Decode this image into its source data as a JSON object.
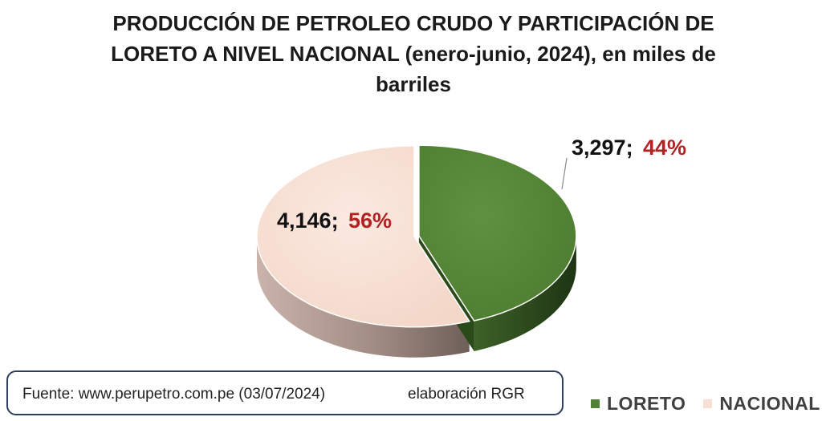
{
  "title": {
    "line1": "PRODUCCIÓN DE PETROLEO CRUDO Y PARTICIPACIÓN DE",
    "line2": "LORETO A NIVEL NACIONAL (enero-junio, 2024), en miles de",
    "line3": "barriles"
  },
  "chart_data": {
    "type": "pie",
    "title": "PRODUCCIÓN DE PETROLEO CRUDO Y PARTICIPACIÓN DE LORETO A NIVEL NACIONAL (enero-junio, 2024), en miles de barriles",
    "slices": [
      {
        "name": "LORETO",
        "value": 3297,
        "value_label": "3,297;",
        "percent_label": "44%",
        "color": "#538135",
        "exploded": true
      },
      {
        "name": "NACIONAL",
        "value": 4146,
        "value_label": "4,146;",
        "percent_label": "56%",
        "color": "#f8dfd3",
        "exploded": false
      }
    ],
    "style": "3d-pie",
    "legend_position": "bottom-right"
  },
  "legend": {
    "items": [
      {
        "label": "LORETO",
        "color": "#538135"
      },
      {
        "label": "NACIONAL",
        "color": "#f8dfd3"
      }
    ]
  },
  "source": {
    "text": "Fuente: www.perupetro.com.pe (03/07/2024)",
    "credit": "elaboración RGR"
  },
  "colors": {
    "percent": "#b22222",
    "border": "#2e3e5c"
  }
}
